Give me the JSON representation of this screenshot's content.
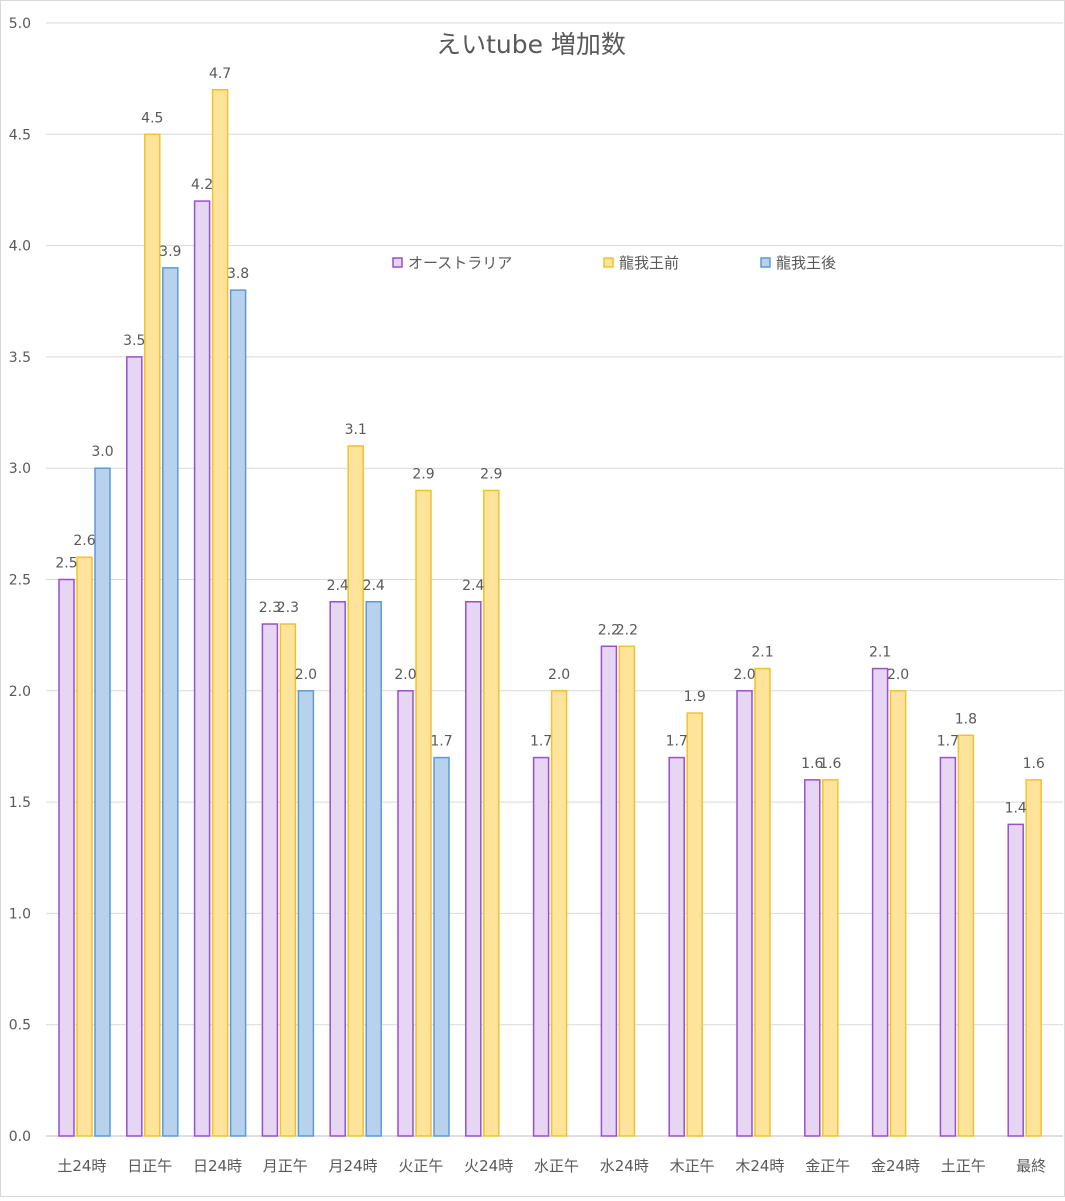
{
  "chart_data": {
    "type": "bar",
    "title": "えいtube  増加数",
    "xlabel": "",
    "ylabel": "",
    "ylim": [
      0,
      5
    ],
    "yticks": [
      "0.0",
      "0.5",
      "1.0",
      "1.5",
      "2.0",
      "2.5",
      "3.0",
      "3.5",
      "4.0",
      "4.5",
      "5.0"
    ],
    "grid": true,
    "legend_position": "upper-center",
    "categories": [
      "土24時",
      "日正午",
      "日24時",
      "月正午",
      "月24時",
      "火正午",
      "火24時",
      "水正午",
      "水24時",
      "木正午",
      "木24時",
      "金正午",
      "金24時",
      "土正午",
      "最終"
    ],
    "series": [
      {
        "name": "オーストラリア",
        "fill": "#e6d5f3",
        "stroke": "#9b4fcc",
        "values": [
          2.5,
          3.5,
          4.2,
          2.3,
          2.4,
          2.0,
          2.4,
          1.7,
          2.2,
          1.7,
          2.0,
          1.6,
          2.1,
          1.7,
          1.4
        ],
        "labels": [
          "2.5",
          "3.5",
          "4.2",
          "2.3",
          "2.4",
          "2.0",
          "2.4",
          "1.7",
          "2.2",
          "1.7",
          "2.0",
          "1.6",
          "2.1",
          "1.7",
          "1.4"
        ]
      },
      {
        "name": "龍我王前",
        "fill": "#fde49a",
        "stroke": "#f2c12e",
        "values": [
          2.6,
          4.5,
          4.7,
          2.3,
          3.1,
          2.9,
          2.9,
          2.0,
          2.2,
          1.9,
          2.1,
          1.6,
          2.0,
          1.8,
          1.6
        ],
        "labels": [
          "2.6",
          "4.5",
          "4.7",
          "2.3",
          "3.1",
          "2.9",
          "2.9",
          "2.0",
          "2.2",
          "1.9",
          "2.1",
          "1.6",
          "2.0",
          "1.8",
          "1.6"
        ]
      },
      {
        "name": "龍我王後",
        "fill": "#b8d1ec",
        "stroke": "#5b9bd5",
        "values": [
          3.0,
          3.9,
          3.8,
          2.0,
          2.4,
          1.7,
          null,
          null,
          null,
          null,
          null,
          null,
          null,
          null,
          null
        ],
        "labels": [
          "3.0",
          "3.9",
          "3.8",
          "2.0",
          "2.4",
          "1.7",
          null,
          null,
          null,
          null,
          null,
          null,
          null,
          null,
          null
        ]
      }
    ]
  }
}
